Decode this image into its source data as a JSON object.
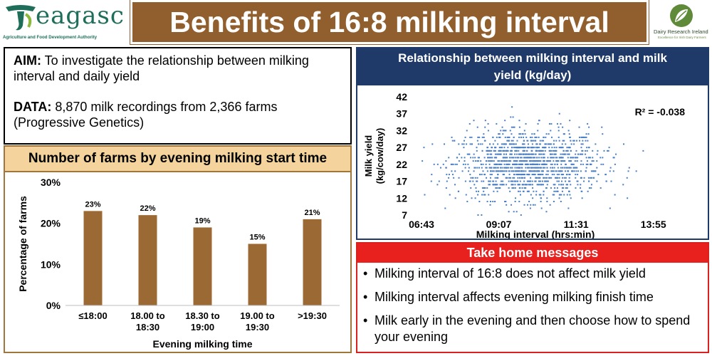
{
  "header": {
    "title": "Benefits of 16:8 milking interval",
    "logo_left_word": "eagasc",
    "logo_left_tagline": "Agriculture and Food Development Authority",
    "logo_right_name": "Dairy Research Ireland",
    "logo_right_sub": "Excellence for Irish Dairy Farmers"
  },
  "aim": {
    "aim_label": "AIM:",
    "aim_text": " To investigate the relationship between milking interval and daily yield",
    "data_label": "DATA:",
    "data_text": " 8,870 milk recordings from 2,366 farms (Progressive Genetics)"
  },
  "farms_panel": {
    "title": "Number of farms by evening milking start time"
  },
  "scatter_panel": {
    "title_line1": "Relationship between milking interval and milk",
    "title_line2": "yield (kg/day)"
  },
  "takehome": {
    "title": "Take home messages",
    "items": [
      "Milking interval of 16:8 does not affect milk yield",
      "Milking interval affects evening milking finish time",
      "Milk early in the evening and then choose how to spend your evening"
    ]
  },
  "colors": {
    "brand_brown": "#915f2d",
    "bar_fill": "#9b6a34",
    "navy": "#1f3a68",
    "red": "#e8201e",
    "tan": "#f4d49c",
    "scatter_point": "#4a7fc4"
  },
  "chart_data": [
    {
      "type": "bar",
      "categories": [
        [
          "≤18:00"
        ],
        [
          "18.00 to",
          "18:30"
        ],
        [
          "18.30 to",
          "19:00"
        ],
        [
          "19.00 to",
          "19:30"
        ],
        [
          ">19:30"
        ]
      ],
      "values": [
        23,
        22,
        19,
        15,
        21
      ],
      "data_labels": [
        "23%",
        "22%",
        "19%",
        "15%",
        "21%"
      ],
      "xlabel": "Evening milking time",
      "ylabel": "Percentage of farms",
      "ylim": [
        0,
        30
      ],
      "yticks": [
        "0%",
        "10%",
        "20%",
        "30%"
      ],
      "grid": false
    },
    {
      "type": "scatter",
      "n_points": 8870,
      "xlabel": "Milking interval (hrs:min)",
      "ylabel_line1": "Milk yield",
      "ylabel_line2": "(kg/cow/day)",
      "xlim": [
        "06:43",
        "15:07"
      ],
      "ylim": [
        7,
        42
      ],
      "xticks": [
        "06:43",
        "09:07",
        "11:31",
        "13:55"
      ],
      "yticks": [
        42,
        37,
        32,
        27,
        22,
        17,
        12,
        7
      ],
      "annotation": "R² = -0.038",
      "x_mean": "10:00",
      "y_mean": 22,
      "grid": false
    }
  ]
}
